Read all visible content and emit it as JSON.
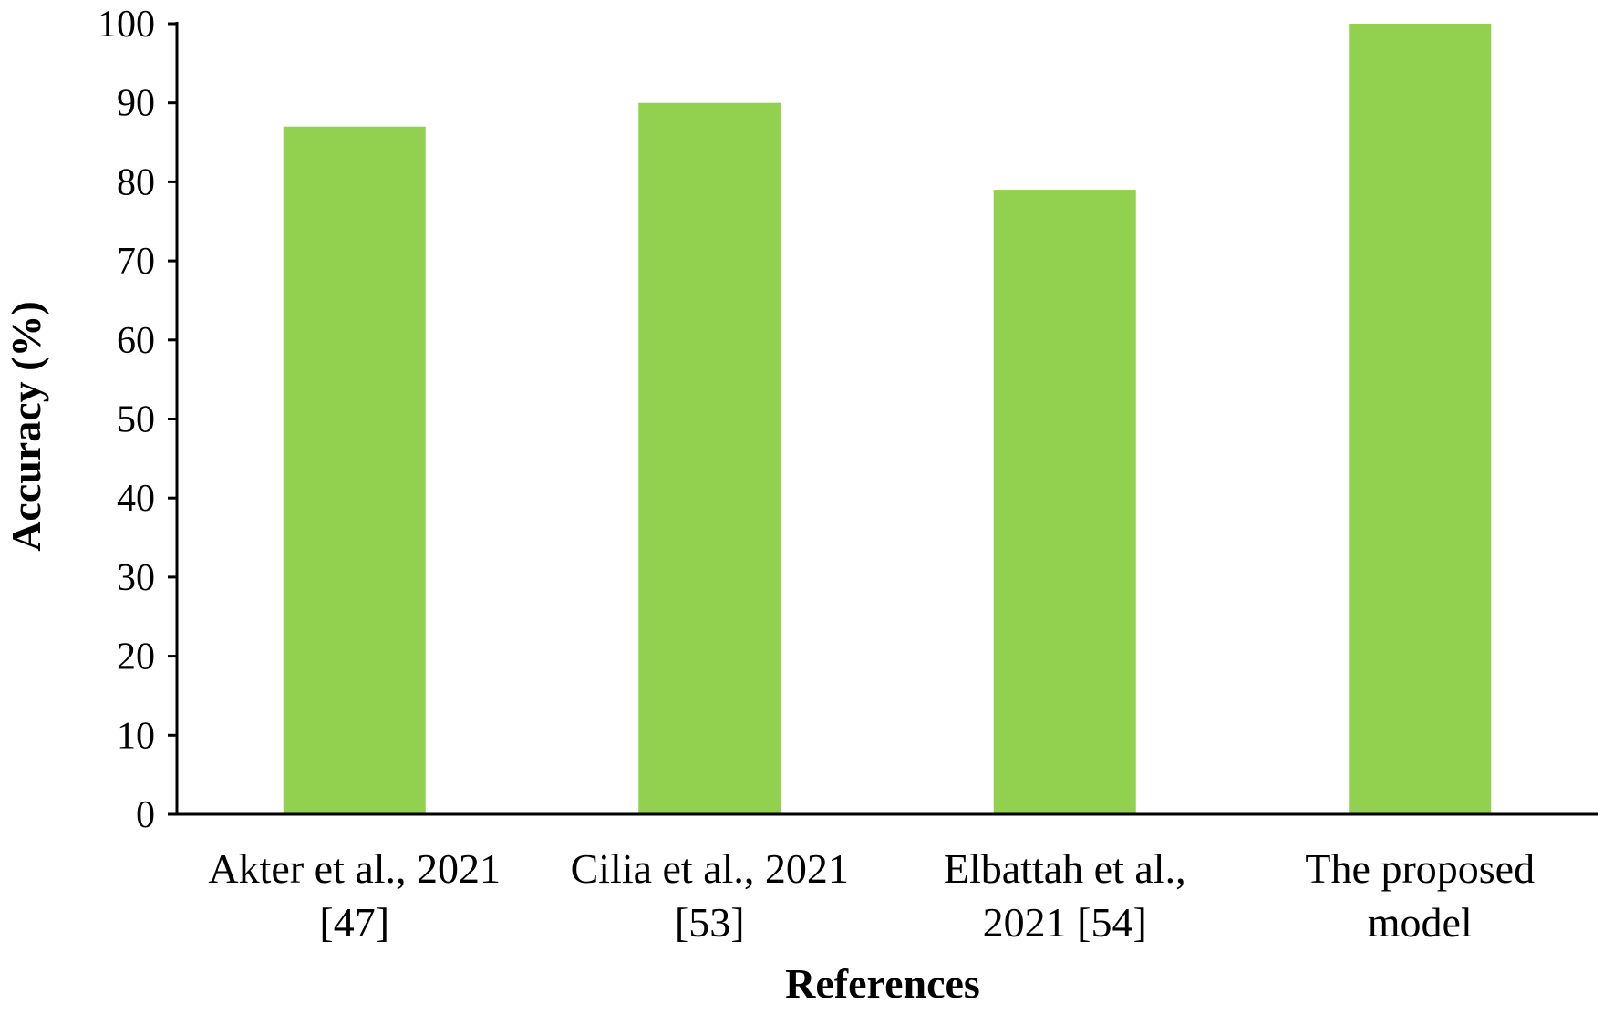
{
  "chart_data": {
    "type": "bar",
    "categories": [
      [
        "Akter et al., 2021",
        "[47]"
      ],
      [
        "Cilia et al., 2021",
        "[53]"
      ],
      [
        "Elbattah et al.,",
        "2021 [54]"
      ],
      [
        "The proposed",
        "model"
      ]
    ],
    "values": [
      87,
      90,
      79,
      100
    ],
    "title": "",
    "xlabel": "References",
    "ylabel": "Accuracy (%)",
    "ylim": [
      0,
      100
    ],
    "yticks": [
      0,
      10,
      20,
      30,
      40,
      50,
      60,
      70,
      80,
      90,
      100
    ],
    "grid": false,
    "legend": "none",
    "colors": {
      "bar": "#92d050",
      "axis": "#000000",
      "text": "#000000"
    }
  }
}
